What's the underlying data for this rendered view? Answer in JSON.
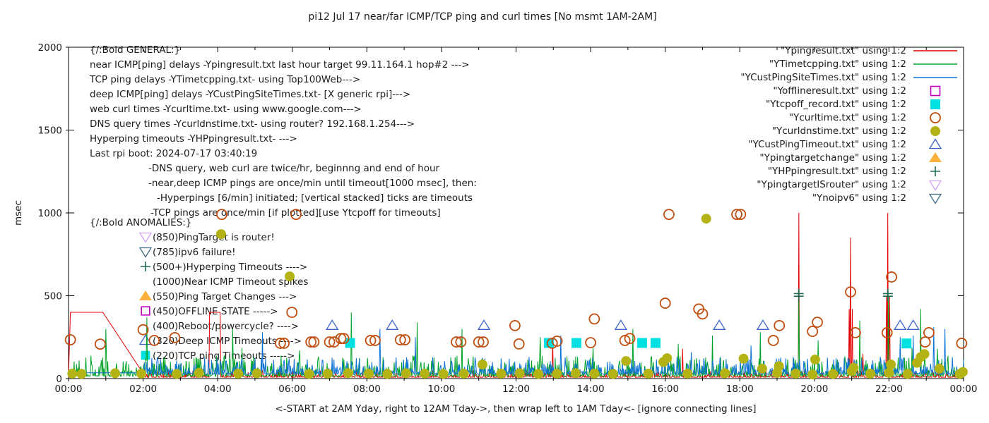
{
  "title": "pi12 Jul 17  near/far ICMP/TCP ping and curl times [No msmt 1AM-2AM]",
  "ylabel": "msec",
  "xlabel": "<-START at 2AM Yday, right to 12AM Tday->, then wrap left to 1AM Tday<- [ignore connecting lines]",
  "axes": {
    "y_range": [
      0,
      2000
    ],
    "y_ticks": [
      0,
      500,
      1000,
      1500,
      2000
    ],
    "x_range_hours": [
      0,
      24
    ],
    "x_major_every_hours": 2,
    "x_minor_every_hours": 1,
    "x_tick_labels": [
      "00:00",
      "02:00",
      "04:00",
      "06:00",
      "08:00",
      "10:00",
      "12:00",
      "14:00",
      "16:00",
      "18:00",
      "20:00",
      "22:00",
      "00:00"
    ],
    "border": true,
    "grid": false
  },
  "legend": {
    "position": "top-right-inside",
    "entries": [
      {
        "label": "\"Ypingresult.txt\" using 1:2",
        "swatch": "line",
        "color": "#e60000"
      },
      {
        "label": "\"YTimetcpping.txt\" using 1:2",
        "swatch": "line",
        "color": "#00a327"
      },
      {
        "label": "\"YCustPingSiteTimes.txt\" using 1:2",
        "swatch": "line",
        "color": "#0e72d4"
      },
      {
        "label": "\"Yofflineresult.txt\" using 1:2",
        "swatch": "square-open",
        "color": "#bf00bf"
      },
      {
        "label": "\"Ytcpoff_record.txt\" using 1:2",
        "swatch": "square-filled",
        "color": "#00e0e0"
      },
      {
        "label": "\"Ycurltime.txt\" using 1:2",
        "swatch": "circle-open",
        "color": "#c04e10"
      },
      {
        "label": "\"Ycurldnstime.txt\" using 1:2",
        "swatch": "circle-filled",
        "color": "#b3b315"
      },
      {
        "label": "\"YCustPingTimeout.txt\" using 1:2",
        "swatch": "triangle-up-open",
        "color": "#3c64c8"
      },
      {
        "label": "\"Ypingtargetchange\" using 1:2",
        "swatch": "triangle-up-filled",
        "color": "#fbb13c"
      },
      {
        "label": "\"YHPpingresult.txt\" using 1:2",
        "swatch": "plus",
        "color": "#1d6b52"
      },
      {
        "label": "\"YpingtargetISrouter\" using 1:2",
        "swatch": "triangle-down-open",
        "color": "#cfa2f8"
      },
      {
        "label": "\"Ynoipv6\" using 1:2",
        "swatch": "triangle-down-open",
        "color": "#3d6b85"
      }
    ]
  },
  "annotations": {
    "general": {
      "header": "{/:Bold GENERAL:}",
      "lines": [
        {
          "text": "near ICMP[ping] delays -Ypingresult.txt last hour target 99.11.164.1 hop#2 --->",
          "x": 127
        },
        {
          "text": "TCP ping delays -YTimetcpping.txt- using Top100Web--->",
          "x": 127
        },
        {
          "text": "deep ICMP[ping] delays -YCustPingSiteTimes.txt- [X generic rpi]--->",
          "x": 127
        },
        {
          "text": "web curl times -Ycurltime.txt- using www.google.com--->",
          "x": 127
        },
        {
          "text": "DNS query times -Ycurldnstime.txt- using router? 192.168.1.254--->",
          "x": 127
        },
        {
          "text": "Hyperping timeouts -YHPpingresult.txt- --->",
          "x": 127
        },
        {
          "text": "Last rpi boot: 2024-07-17 03:40:19",
          "x": 127
        },
        {
          "text": "-DNS query, web curl are twice/hr, beginnng and end of hour",
          "x": 210
        },
        {
          "text": "-near,deep ICMP pings are once/min until timeout[1000 msec], then:",
          "x": 210
        },
        {
          "text": "-Hyperpings [6/min] initiated; [vertical stacked] ticks are timeouts",
          "x": 222
        },
        {
          "text": "-TCP pings are once/min [if plotted][use Ytcpoff for timeouts]",
          "x": 213
        }
      ]
    },
    "anomalies": {
      "header": "{/:Bold ANOMALIES:}",
      "items": [
        {
          "marker": "triangle-down-open",
          "color": "#cfa2f8",
          "text": "(850)PingTarget is router!"
        },
        {
          "marker": "triangle-down-open",
          "color": "#3d6b85",
          "text": "(785)ipv6 failure!"
        },
        {
          "marker": "plus",
          "color": "#1d6b52",
          "text": "(500+)Hyperping Timeouts ---->"
        },
        {
          "marker": null,
          "color": null,
          "text": "(1000)Near ICMP Timeout spikes"
        },
        {
          "marker": "triangle-up-filled",
          "color": "#fbb13c",
          "text": "(550)Ping Target Changes --->"
        },
        {
          "marker": "square-open",
          "color": "#bf00bf",
          "text": "(450)OFFLINE STATE ----->"
        },
        {
          "marker": null,
          "color": null,
          "text": "(400)Reboot/powercycle? ---->"
        },
        {
          "marker": "triangle-up-open",
          "color": "#3c64c8",
          "text": "(320)Deep ICMP Timeouts ---->"
        },
        {
          "marker": "square-filled",
          "color": "#00e0e0",
          "text": "(220)TCP ping Timeouts ----->"
        }
      ]
    }
  },
  "chart_data": {
    "type": "line+scatter",
    "x_unit": "hours 00:00-24:00",
    "y_unit": "msec",
    "series": [
      {
        "name": "Ypingresult.txt",
        "type": "line",
        "color": "#e60000",
        "style": {
          "baseline": 8,
          "noise_max": 45,
          "noise_pow": 6
        },
        "anchors": [
          [
            0,
            15
          ],
          [
            0.05,
            400
          ],
          [
            0.92,
            400
          ],
          [
            2.05,
            15
          ]
        ],
        "pulse": {
          "from": 3.78,
          "to": 4.07,
          "value": 400
        },
        "spikes": [
          [
            12.98,
            230
          ],
          [
            16.47,
            180
          ],
          [
            19.58,
            1000
          ],
          [
            20.93,
            420
          ],
          [
            20.97,
            850
          ],
          [
            21.02,
            420
          ],
          [
            21.3,
            150
          ],
          [
            21.93,
            500
          ],
          [
            21.97,
            1000
          ],
          [
            22.02,
            500
          ]
        ]
      },
      {
        "name": "YTimetcpping.txt",
        "type": "line",
        "color": "#00a327",
        "style": {
          "baseline": 14,
          "noise_max": 125,
          "noise_pow": 4
        },
        "spikes": [
          [
            1.0,
            300
          ],
          [
            2.1,
            370
          ],
          [
            4.4,
            300
          ],
          [
            4.65,
            185
          ],
          [
            6.2,
            170
          ],
          [
            7.58,
            400
          ],
          [
            9.35,
            340
          ],
          [
            10.55,
            300
          ],
          [
            12.65,
            250
          ],
          [
            14.07,
            185
          ],
          [
            15.13,
            300
          ],
          [
            16.35,
            210
          ],
          [
            17.27,
            260
          ],
          [
            18.55,
            280
          ],
          [
            19.58,
            505
          ],
          [
            20.1,
            230
          ],
          [
            21.22,
            350
          ],
          [
            21.98,
            505
          ],
          [
            22.62,
            185
          ],
          [
            22.85,
            420
          ],
          [
            23.3,
            180
          ]
        ]
      },
      {
        "name": "YCustPingSiteTimes.txt",
        "type": "line",
        "color": "#0e72d4",
        "style": {
          "baseline": 26,
          "noise_max": 105,
          "noise_pow": 4,
          "flat_until": 2.0,
          "flat_value": 35
        },
        "spikes": [
          [
            5.2,
            280
          ],
          [
            8.35,
            300
          ],
          [
            9.3,
            250
          ],
          [
            13.2,
            260
          ],
          [
            16.7,
            160
          ],
          [
            18.3,
            200
          ],
          [
            22.3,
            250
          ],
          [
            22.65,
            260
          ],
          [
            23.2,
            310
          ],
          [
            23.5,
            300
          ]
        ]
      },
      {
        "name": "Yofflineresult.txt",
        "type": "scatter",
        "marker": "square-open",
        "color": "#bf00bf",
        "points": []
      },
      {
        "name": "Ytcpoff_record.txt",
        "type": "scatter",
        "marker": "square-filled",
        "color": "#00e0e0",
        "points": [
          [
            7.55,
            215
          ],
          [
            12.88,
            215
          ],
          [
            13.62,
            215
          ],
          [
            15.38,
            215
          ],
          [
            15.74,
            215
          ],
          [
            22.47,
            212
          ]
        ]
      },
      {
        "name": "Ycurltime.txt",
        "type": "scatter",
        "marker": "circle-open",
        "color": "#c04e10",
        "points": [
          [
            0.05,
            234
          ],
          [
            0.85,
            208
          ],
          [
            2.0,
            295
          ],
          [
            2.3,
            230
          ],
          [
            2.85,
            247
          ],
          [
            4.11,
            991
          ],
          [
            5.68,
            213
          ],
          [
            5.78,
            213
          ],
          [
            5.99,
            400
          ],
          [
            6.1,
            991
          ],
          [
            6.5,
            221
          ],
          [
            6.58,
            221
          ],
          [
            7.0,
            221
          ],
          [
            7.12,
            221
          ],
          [
            7.3,
            242
          ],
          [
            7.38,
            242
          ],
          [
            8.1,
            230
          ],
          [
            8.22,
            230
          ],
          [
            8.9,
            234
          ],
          [
            9.02,
            234
          ],
          [
            10.4,
            221
          ],
          [
            10.52,
            221
          ],
          [
            11.0,
            221
          ],
          [
            11.12,
            221
          ],
          [
            11.97,
            320
          ],
          [
            12.08,
            209
          ],
          [
            12.97,
            213
          ],
          [
            13.1,
            226
          ],
          [
            14.0,
            217
          ],
          [
            14.1,
            360
          ],
          [
            14.92,
            230
          ],
          [
            15.05,
            242
          ],
          [
            16.0,
            455
          ],
          [
            16.1,
            991
          ],
          [
            16.9,
            420
          ],
          [
            17.0,
            390
          ],
          [
            17.92,
            991
          ],
          [
            18.02,
            991
          ],
          [
            18.9,
            230
          ],
          [
            19.06,
            320
          ],
          [
            19.95,
            285
          ],
          [
            20.08,
            340
          ],
          [
            20.97,
            523
          ],
          [
            21.1,
            277
          ],
          [
            21.95,
            277
          ],
          [
            22.07,
            613
          ],
          [
            22.97,
            221
          ],
          [
            23.07,
            277
          ],
          [
            23.95,
            213
          ]
        ]
      },
      {
        "name": "Ycurldnstime.txt",
        "type": "scatter",
        "marker": "circle-filled",
        "color": "#b3b315",
        "points": [
          [
            0.1,
            30
          ],
          [
            0.35,
            28
          ],
          [
            1.25,
            32
          ],
          [
            1.95,
            30
          ],
          [
            2.9,
            28
          ],
          [
            3.5,
            35
          ],
          [
            4.09,
            872
          ],
          [
            4.55,
            30
          ],
          [
            5.05,
            32
          ],
          [
            5.93,
            617
          ],
          [
            6.45,
            28
          ],
          [
            6.95,
            30
          ],
          [
            7.5,
            33
          ],
          [
            8.05,
            30
          ],
          [
            8.55,
            28
          ],
          [
            9.05,
            32
          ],
          [
            9.55,
            30
          ],
          [
            10.05,
            28
          ],
          [
            10.6,
            30
          ],
          [
            11.1,
            85
          ],
          [
            11.6,
            30
          ],
          [
            12.1,
            32
          ],
          [
            12.6,
            28
          ],
          [
            13.1,
            30
          ],
          [
            13.6,
            33
          ],
          [
            14.1,
            30
          ],
          [
            14.6,
            28
          ],
          [
            14.95,
            106
          ],
          [
            15.55,
            30
          ],
          [
            15.95,
            100
          ],
          [
            16.05,
            123
          ],
          [
            16.6,
            30
          ],
          [
            17.1,
            965
          ],
          [
            17.6,
            32
          ],
          [
            18.1,
            120
          ],
          [
            18.6,
            60
          ],
          [
            19.0,
            35
          ],
          [
            19.05,
            75
          ],
          [
            19.5,
            30
          ],
          [
            19.95,
            25
          ],
          [
            20.02,
            115
          ],
          [
            20.5,
            28
          ],
          [
            21.0,
            45
          ],
          [
            21.05,
            65
          ],
          [
            21.5,
            30
          ],
          [
            22.0,
            35
          ],
          [
            22.05,
            85
          ],
          [
            22.5,
            28
          ],
          [
            22.75,
            95
          ],
          [
            22.85,
            130
          ],
          [
            22.95,
            148
          ],
          [
            23.35,
            60
          ],
          [
            23.9,
            28
          ],
          [
            23.98,
            40
          ]
        ]
      },
      {
        "name": "YCustPingTimeout.txt",
        "type": "scatter",
        "marker": "triangle-up-open",
        "color": "#3c64c8",
        "points": [
          [
            7.07,
            320
          ],
          [
            8.68,
            320
          ],
          [
            11.14,
            320
          ],
          [
            14.81,
            320
          ],
          [
            17.45,
            320
          ],
          [
            18.62,
            320
          ],
          [
            22.3,
            320
          ],
          [
            22.65,
            320
          ]
        ]
      },
      {
        "name": "Ypingtargetchange",
        "type": "scatter",
        "marker": "triangle-up-filled",
        "color": "#fbb13c",
        "points": []
      },
      {
        "name": "YHPpingresult.txt",
        "type": "scatter",
        "marker": "plus",
        "color": "#1d6b52",
        "points": [
          [
            19.58,
            497
          ],
          [
            19.58,
            513
          ],
          [
            21.97,
            497
          ],
          [
            21.97,
            513
          ]
        ]
      },
      {
        "name": "YpingtargetISrouter",
        "type": "scatter",
        "marker": "triangle-down-open",
        "color": "#cfa2f8",
        "points": []
      },
      {
        "name": "Ynoipv6",
        "type": "scatter",
        "marker": "triangle-down-open",
        "color": "#3d6b85",
        "points": []
      }
    ]
  }
}
